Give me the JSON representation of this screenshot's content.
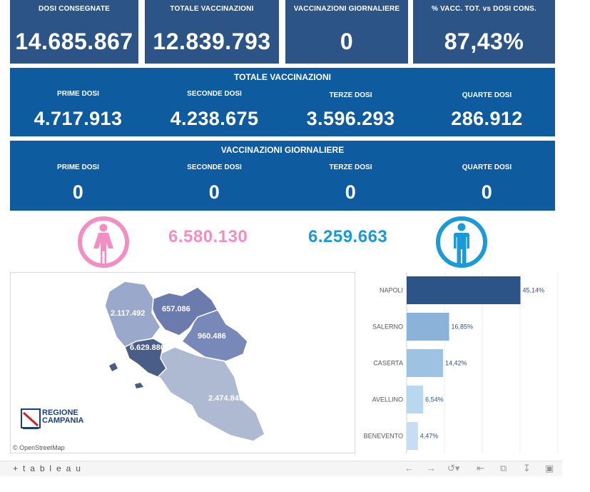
{
  "kpis": [
    {
      "label": "DOSI  CONSEGNATE",
      "value": "14.685.867"
    },
    {
      "label": "TOTALE VACCINAZIONI",
      "value": "12.839.793"
    },
    {
      "label": "VACCINAZIONI GIORNALIERE",
      "value": "0"
    },
    {
      "label": "% VACC. TOT. vs DOSI CONS.",
      "value": "87,43%"
    }
  ],
  "totale": {
    "title": "TOTALE VACCINAZIONI",
    "cols": [
      {
        "label": "PRIME DOSI",
        "value": "4.717.913"
      },
      {
        "label": "SECONDE DOSI",
        "value": "4.238.675"
      },
      {
        "label": "TERZE DOSI",
        "value": "3.596.293"
      },
      {
        "label": "QUARTE DOSI",
        "value": "286.912"
      }
    ]
  },
  "giornaliere": {
    "title": "VACCINAZIONI GIORNALIERE",
    "cols": [
      {
        "label": "PRIME DOSI",
        "value": "0"
      },
      {
        "label": "SECONDE DOSI",
        "value": "0"
      },
      {
        "label": "TERZE DOSI",
        "value": "0"
      },
      {
        "label": "QUARTE DOSI",
        "value": "0"
      }
    ]
  },
  "gender": {
    "female_value": "6.580.130",
    "male_value": "6.259.663",
    "female_icon": "female-icon",
    "male_icon": "male-icon",
    "female_color": "#f28ec2",
    "male_color": "#1a9ad7"
  },
  "map": {
    "labels": [
      "2.117.492",
      "657.086",
      "960.486",
      "6.629.880",
      "2.474.849"
    ],
    "logo_line1": "REGIONE",
    "logo_line2": "CAMPANIA",
    "attribution": "© OpenStreetMap"
  },
  "chart_data": {
    "type": "bar",
    "orientation": "horizontal",
    "categories": [
      "NAPOLI",
      "SALERNO",
      "CASERTA",
      "AVELLINO",
      "BENEVENTO"
    ],
    "values": [
      45.14,
      16.85,
      14.42,
      6.54,
      4.47
    ],
    "value_labels": [
      "45,14%",
      "16,85%",
      "14,42%",
      "6,54%",
      "4,47%"
    ],
    "colors": [
      "#2c5486",
      "#8bb2d8",
      "#9ec2e2",
      "#b9d7ef",
      "#c5def2"
    ],
    "xlim": [
      0,
      60
    ],
    "grid": true
  },
  "toolbar": {
    "brand": "+ t a b l e a u",
    "icons": [
      "undo-icon",
      "redo-icon",
      "revert-icon",
      "pause-icon",
      "share-icon",
      "download-icon",
      "fullscreen-icon"
    ]
  },
  "colors": {
    "kpi_bg": "#2c5486",
    "panel_bg": "#0e5b9f"
  }
}
